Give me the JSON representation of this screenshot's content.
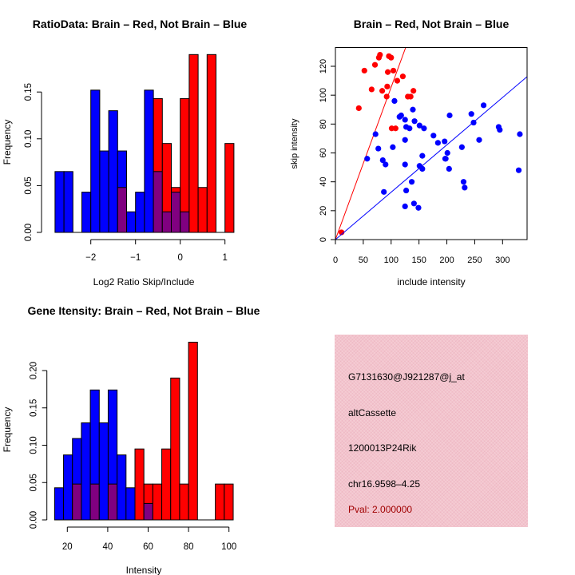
{
  "colors": {
    "red": "#ff0000",
    "blue": "#0000ff",
    "overlap": "#800080",
    "panel": "#f3c4cd",
    "pval": "#a00000"
  },
  "chart_data": [
    {
      "type": "bar",
      "id": "ratio",
      "title": "RatioData: Brain – Red, Not Brain – Blue",
      "xlabel": "Log2 Ratio Skip/Include",
      "ylabel": "Frequency",
      "bin_start": -2.8,
      "bin_width": 0.2,
      "x_ticks": [
        -2,
        -1,
        0,
        1
      ],
      "x_tick_labels": [
        "−2",
        "−1",
        "0",
        "1"
      ],
      "y_ticks": [
        0,
        0.05,
        0.1,
        0.15
      ],
      "y_tick_labels": [
        "0.00",
        "0.05",
        "0.10",
        "0.15"
      ],
      "series": [
        {
          "name": "Not Brain",
          "color": "blue",
          "values": [
            0.065,
            0.065,
            0,
            0.043,
            0.152,
            0.087,
            0.13,
            0.087,
            0.022,
            0.043,
            0.152,
            0.065,
            0.022,
            0.043,
            0.022,
            0,
            0,
            0,
            0,
            0
          ]
        },
        {
          "name": "Brain",
          "color": "red",
          "values": [
            0,
            0,
            0,
            0,
            0,
            0,
            0,
            0.048,
            0,
            0,
            0,
            0.143,
            0.095,
            0.048,
            0.143,
            0.19,
            0.048,
            0.19,
            0,
            0.095
          ]
        }
      ]
    },
    {
      "type": "scatter",
      "id": "scatter",
      "title": "Brain – Red, Not Brain – Blue",
      "xlabel": "include intensity",
      "ylabel": "skip intensity",
      "xlim": [
        0,
        344
      ],
      "ylim": [
        0,
        133
      ],
      "x_ticks": [
        0,
        50,
        100,
        150,
        200,
        250,
        300
      ],
      "x_tick_labels": [
        "0",
        "50",
        "100",
        "150",
        "200",
        "250",
        "300"
      ],
      "y_ticks": [
        0,
        20,
        40,
        60,
        80,
        100,
        120
      ],
      "y_tick_labels": [
        "0",
        "20",
        "40",
        "60",
        "80",
        "100",
        "120"
      ],
      "series": [
        {
          "name": "Brain",
          "color": "red",
          "line_slope": 1.055,
          "points": [
            [
              11,
              5
            ],
            [
              42,
              91
            ],
            [
              52,
              117
            ],
            [
              65,
              104
            ],
            [
              71,
              121
            ],
            [
              78,
              126
            ],
            [
              80,
              128
            ],
            [
              84,
              103
            ],
            [
              92,
              99
            ],
            [
              93,
              106
            ],
            [
              94,
              116
            ],
            [
              96,
              127
            ],
            [
              100,
              126
            ],
            [
              104,
              117
            ],
            [
              111,
              110
            ],
            [
              101,
              77
            ],
            [
              108,
              77
            ],
            [
              121,
              113
            ],
            [
              130,
              99
            ],
            [
              135,
              99
            ],
            [
              140,
              103
            ]
          ]
        },
        {
          "name": "Not Brain",
          "color": "blue",
          "line_slope": 0.328,
          "points": [
            [
              106,
              96
            ],
            [
              72,
              73
            ],
            [
              77,
              63
            ],
            [
              57,
              56
            ],
            [
              85,
              55
            ],
            [
              90,
              52
            ],
            [
              87,
              33
            ],
            [
              103,
              64
            ],
            [
              115,
              85
            ],
            [
              118,
              86
            ],
            [
              125,
              83
            ],
            [
              139,
              90
            ],
            [
              142,
              82
            ],
            [
              127,
              78
            ],
            [
              133,
              77
            ],
            [
              125,
              69
            ],
            [
              125,
              52
            ],
            [
              151,
              79
            ],
            [
              159,
              77
            ],
            [
              137,
              40
            ],
            [
              127,
              34
            ],
            [
              125,
              23
            ],
            [
              141,
              25
            ],
            [
              149,
              22
            ],
            [
              156,
              58
            ],
            [
              151,
              51
            ],
            [
              156,
              49
            ],
            [
              176,
              72
            ],
            [
              184,
              67
            ],
            [
              196,
              68
            ],
            [
              205,
              86
            ],
            [
              201,
              60
            ],
            [
              197,
              56
            ],
            [
              198,
              56
            ],
            [
              204,
              49
            ],
            [
              227,
              64
            ],
            [
              230,
              40
            ],
            [
              232,
              36
            ],
            [
              244,
              87
            ],
            [
              248,
              81
            ],
            [
              266,
              93
            ],
            [
              258,
              69
            ],
            [
              293,
              78
            ],
            [
              295,
              76
            ],
            [
              331,
              73
            ],
            [
              329,
              48
            ]
          ]
        }
      ]
    },
    {
      "type": "bar",
      "id": "intensity",
      "title": "Gene Itensity: Brain – Red, Not Brain – Blue",
      "xlabel": "Intensity",
      "ylabel": "Frequency",
      "bin_start": 13.7,
      "bin_width": 4.42,
      "x_ticks": [
        20,
        40,
        60,
        80,
        100
      ],
      "x_tick_labels": [
        "20",
        "40",
        "60",
        "80",
        "100"
      ],
      "y_ticks": [
        0,
        0.05,
        0.1,
        0.15,
        0.2
      ],
      "y_tick_labels": [
        "0.00",
        "0.05",
        "0.10",
        "0.15",
        "0.20"
      ],
      "series": [
        {
          "name": "Not Brain",
          "color": "blue",
          "values": [
            0.043,
            0.087,
            0.109,
            0.13,
            0.174,
            0.13,
            0.174,
            0.087,
            0.043,
            0,
            0.022,
            0,
            0,
            0,
            0,
            0,
            0,
            0,
            0,
            0
          ]
        },
        {
          "name": "Brain",
          "color": "red",
          "values": [
            0,
            0,
            0.048,
            0,
            0.048,
            0,
            0.048,
            0,
            0,
            0.095,
            0.048,
            0.048,
            0.095,
            0.19,
            0.048,
            0.238,
            0,
            0,
            0.048,
            0.048
          ]
        }
      ]
    }
  ],
  "info_panel": {
    "probe_id": "G7131630@J921287@j_at",
    "event_type": "altCassette",
    "gene": "1200013P24Rik",
    "location": "chr16.9598–4.25",
    "pval": "Pval: 2.000000"
  }
}
